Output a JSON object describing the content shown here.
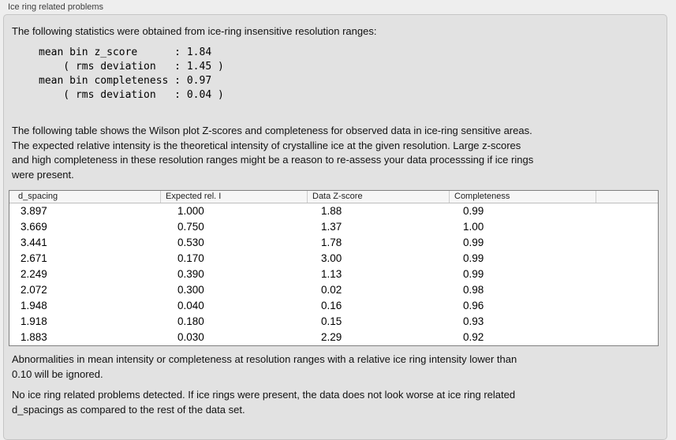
{
  "panel": {
    "title": "Ice ring related problems",
    "intro": "The following statistics were obtained from ice-ring insensitive resolution ranges:",
    "stats_block": "mean bin z_score      : 1.84\n    ( rms deviation   : 1.45 )\nmean bin completeness : 0.97\n    ( rms deviation   : 0.04 )",
    "stats": {
      "mean_bin_z_score": "1.84",
      "z_score_rms_deviation": "1.45",
      "mean_bin_completeness": "0.97",
      "completeness_rms_deviation": "0.04"
    },
    "table_description": "The following table shows the Wilson plot Z-scores and completeness for observed data in ice-ring sensitive areas.\nThe expected relative intensity is the theoretical intensity of crystalline ice at the given resolution. Large z-scores\nand high completeness in these resolution ranges might be a reason to re-assess your data processsing if ice rings\nwere present.",
    "table": {
      "headers": [
        "d_spacing",
        "Expected rel. I",
        "Data Z-score",
        "Completeness",
        ""
      ],
      "rows": [
        [
          "3.897",
          "1.000",
          "1.88",
          "0.99"
        ],
        [
          "3.669",
          "0.750",
          "1.37",
          "1.00"
        ],
        [
          "3.441",
          "0.530",
          "1.78",
          "0.99"
        ],
        [
          "2.671",
          "0.170",
          "3.00",
          "0.99"
        ],
        [
          "2.249",
          "0.390",
          "1.13",
          "0.99"
        ],
        [
          "2.072",
          "0.300",
          "0.02",
          "0.98"
        ],
        [
          "1.948",
          "0.040",
          "0.16",
          "0.96"
        ],
        [
          "1.918",
          "0.180",
          "0.15",
          "0.93"
        ],
        [
          "1.883",
          "0.030",
          "2.29",
          "0.92"
        ]
      ]
    },
    "ignore_note": "Abnormalities in mean intensity or completeness at resolution ranges with a relative ice ring intensity lower than\n0.10 will be ignored.",
    "conclusion": "No ice ring related problems detected. If ice rings were present, the data does not look worse at ice ring related\nd_spacings as compared to the rest of the data set."
  },
  "colors": {
    "page_bg": "#eeeeee",
    "panel_bg": "#e2e2e2",
    "panel_border": "#c5c5c5",
    "table_bg": "#ffffff",
    "table_border": "#7f7f7f",
    "header_bg": "#f6f6f6",
    "header_separator": "#cccccc",
    "text": "#111111"
  }
}
